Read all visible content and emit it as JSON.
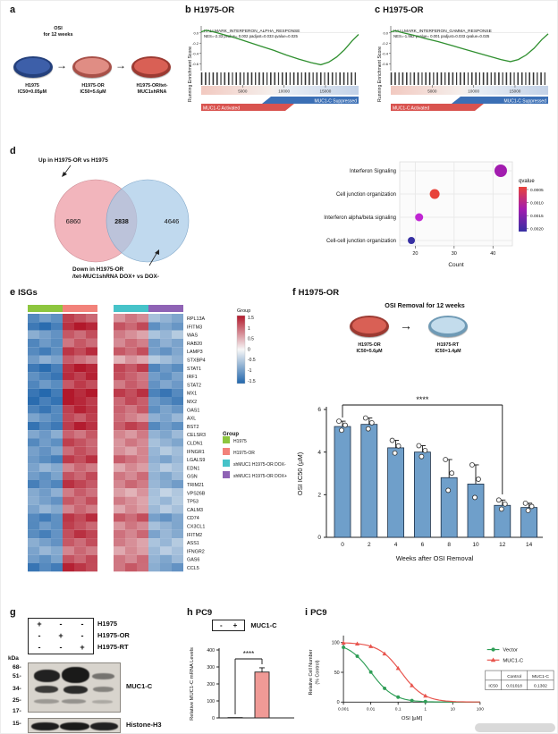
{
  "misc": {
    "arrow": "→"
  },
  "panel_a": {
    "label": "a",
    "osi_note": "OSI\nfor 12 weeks",
    "dishes": [
      {
        "name": "H1975",
        "ic50": "IC50=0.05µM",
        "fill": "#3d5fa9",
        "rim": "#24407c"
      },
      {
        "name": "H1975-OR",
        "ic50": "IC50=5.6µM",
        "fill": "#e08d84",
        "rim": "#a85048"
      },
      {
        "name": "H1975-OR/tet-MUC1shRNA",
        "ic50": "",
        "fill": "#d96055",
        "rim": "#9c3a32"
      }
    ]
  },
  "panel_b": {
    "label": "b",
    "title": "H1975-OR",
    "hallmark": "HALLMARK_INTERFERON_ALPHA_RESPONSE",
    "stats": "NES=-2.33  pvalue= 0.002  padjust=0.033 qvalue=0.025",
    "ylabel": "Running Enrichment Score",
    "activated": "MUC1-C Activated",
    "suppressed": "MUC1-C Suppressed"
  },
  "panel_c": {
    "label": "c",
    "title": "H1975-OR",
    "hallmark": "HALLMARK_INTERFERON_GAMMA_RESPONSE",
    "stats": "NES=-1.982  pvalue= 0.001  padjust=0.033 qvalue=0.025",
    "ylabel": "Running Enrichment Score",
    "activated": "MUC1-C Activated",
    "suppressed": "MUC1-C Suppressed"
  },
  "panel_d": {
    "label": "d",
    "venn": {
      "up_label": "Up in H1975-OR vs H1975",
      "left_count": "6860",
      "overlap_count": "2838",
      "right_count": "4646",
      "down_label_line1": "Down in H1975-OR",
      "down_label_line2": "/tet-MUC1shRNA DOX+ vs DOX-",
      "left_color": "#efa3ab",
      "right_color": "#a5c9e7"
    }
  },
  "panel_e": {
    "label": "e",
    "title": "ISGs"
  },
  "panel_f": {
    "label": "f",
    "title": "H1975-OR",
    "heading": "OSI Removal for 12 weeks",
    "dishes": [
      {
        "name": "H1975-OR",
        "ic50": "IC50=5.6µM",
        "fill": "#d96055",
        "rim": "#9c3a32"
      },
      {
        "name": "H1975-RT",
        "ic50": "IC50=1.4µM",
        "fill": "#c3dcec",
        "rim": "#6f9ab5"
      }
    ]
  },
  "panel_g": {
    "label": "g",
    "condition_rows": [
      {
        "cells": [
          "+",
          "-",
          "-"
        ],
        "name": "H1975"
      },
      {
        "cells": [
          "-",
          "+",
          "-"
        ],
        "name": "H1975-OR"
      },
      {
        "cells": [
          "-",
          "-",
          "+"
        ],
        "name": "H1975-RT"
      }
    ],
    "kda": "kDa",
    "markers": [
      "68-",
      "51-",
      "34-",
      "25-",
      "17-",
      "15-"
    ],
    "blot1_label": "MUC1-C",
    "blot2_label": "Histone-H3"
  },
  "panel_h": {
    "label": "h",
    "title": "PC9",
    "minus": "-",
    "plus": "+",
    "gene": "MUC1-C",
    "sig": "****"
  },
  "panel_i": {
    "label": "i",
    "title": "PC9"
  },
  "chart_data": [
    {
      "id": "gsea_alpha",
      "type": "line",
      "panel": "b",
      "yticks": [
        "0.0",
        "-0.2",
        "-0.4",
        "-0.6"
      ],
      "xticks": [
        5000,
        10000,
        15000
      ],
      "x_total": 19000,
      "color": "#2f8f2f",
      "curve": [
        [
          0,
          0.02
        ],
        [
          0.03,
          0.05
        ],
        [
          0.08,
          0.02
        ],
        [
          0.15,
          -0.04
        ],
        [
          0.22,
          -0.1
        ],
        [
          0.3,
          -0.18
        ],
        [
          0.38,
          -0.26
        ],
        [
          0.46,
          -0.34
        ],
        [
          0.54,
          -0.43
        ],
        [
          0.62,
          -0.51
        ],
        [
          0.7,
          -0.58
        ],
        [
          0.76,
          -0.62
        ],
        [
          0.81,
          -0.57
        ],
        [
          0.86,
          -0.47
        ],
        [
          0.91,
          -0.33
        ],
        [
          0.96,
          -0.15
        ],
        [
          1,
          -0.03
        ]
      ]
    },
    {
      "id": "gsea_gamma",
      "type": "line",
      "panel": "c",
      "yticks": [
        "0.0",
        "-0.2",
        "-0.4",
        "-0.6"
      ],
      "xticks": [
        5000,
        10000,
        15000
      ],
      "x_total": 19000,
      "color": "#2f8f2f",
      "curve": [
        [
          0,
          0.02
        ],
        [
          0.03,
          0.04
        ],
        [
          0.08,
          0.0
        ],
        [
          0.15,
          -0.05
        ],
        [
          0.22,
          -0.11
        ],
        [
          0.3,
          -0.17
        ],
        [
          0.38,
          -0.24
        ],
        [
          0.46,
          -0.31
        ],
        [
          0.54,
          -0.38
        ],
        [
          0.62,
          -0.45
        ],
        [
          0.7,
          -0.52
        ],
        [
          0.76,
          -0.56
        ],
        [
          0.81,
          -0.52
        ],
        [
          0.86,
          -0.43
        ],
        [
          0.91,
          -0.3
        ],
        [
          0.96,
          -0.13
        ],
        [
          1,
          -0.02
        ]
      ]
    },
    {
      "id": "dotplot",
      "type": "scatter",
      "xlabel": "Count",
      "categories": [
        "Interferon Signaling",
        "Cell junction organization",
        "Interferon alpha/beta signaling",
        "Cell-cell junction organization"
      ],
      "counts": [
        42,
        25,
        21,
        19
      ],
      "dot_colors": [
        "#a21caf",
        "#e8433a",
        "#c026d3",
        "#3730a3"
      ],
      "dot_radii": [
        7,
        5.5,
        4.5,
        4
      ],
      "xticks": [
        20,
        30,
        40
      ],
      "xlim": [
        16,
        45
      ],
      "legend_title": "qvalue",
      "legend_ticks": [
        "0.0005",
        "0.0010",
        "0.0015",
        "0.0020"
      ],
      "legend_colors": [
        "#e8433a",
        "#a21caf",
        "#3730a3"
      ]
    },
    {
      "id": "heatmap",
      "type": "heatmap",
      "legend_title": "Group",
      "scale_ticks": [
        "1.5",
        "1",
        "0.5",
        "0",
        "-0.5",
        "-1",
        "-1.5"
      ],
      "groups": [
        {
          "name": "H1975",
          "color": "#8dc63f"
        },
        {
          "name": "H1975-OR",
          "color": "#f2827a"
        },
        {
          "name": "shMUC1 H1975-OR DOX-",
          "color": "#46c3c9"
        },
        {
          "name": "shMUC1 H1975-OR DOX+",
          "color": "#8f63b5"
        }
      ],
      "cols_per_group": 3,
      "rows": [
        [
          "RPL13A",
          -1.0,
          1.1,
          0.8,
          -0.7
        ],
        [
          "IFITM3",
          -1.3,
          1.4,
          1.1,
          -1.0
        ],
        [
          "WAS",
          -0.9,
          1.0,
          0.7,
          -0.6
        ],
        [
          "RAB20",
          -1.1,
          1.0,
          0.8,
          -0.8
        ],
        [
          "LAMP3",
          -1.2,
          1.3,
          1.0,
          -0.9
        ],
        [
          "STXBP4",
          -0.8,
          0.9,
          0.6,
          -0.6
        ],
        [
          "STAT1",
          -1.3,
          1.4,
          1.2,
          -1.1
        ],
        [
          "IRF1",
          -1.2,
          1.3,
          1.0,
          -1.0
        ],
        [
          "STAT2",
          -1.1,
          1.2,
          0.9,
          -0.9
        ],
        [
          "MX1",
          -1.4,
          1.5,
          1.2,
          -1.2
        ],
        [
          "MX2",
          -1.3,
          1.4,
          1.1,
          -1.1
        ],
        [
          "OAS1",
          -1.2,
          1.3,
          1.0,
          -1.0
        ],
        [
          "AXL",
          -1.0,
          1.1,
          0.8,
          -0.8
        ],
        [
          "BST2",
          -1.3,
          1.4,
          1.1,
          -1.0
        ],
        [
          "CELSR3",
          -0.9,
          1.0,
          0.7,
          -0.7
        ],
        [
          "CLDN1",
          -1.0,
          1.1,
          0.8,
          -0.7
        ],
        [
          "IFNGR1",
          -0.9,
          1.0,
          0.7,
          -0.6
        ],
        [
          "LGALS9",
          -1.1,
          1.2,
          0.9,
          -0.8
        ],
        [
          "EDN1",
          -0.8,
          0.9,
          0.6,
          -0.5
        ],
        [
          "GSN",
          -1.0,
          1.1,
          0.8,
          -0.7
        ],
        [
          "TRIM21",
          -1.1,
          1.2,
          0.9,
          -0.8
        ],
        [
          "VPS26B",
          -0.8,
          0.9,
          0.6,
          -0.5
        ],
        [
          "TP53",
          -0.9,
          1.0,
          0.7,
          -0.6
        ],
        [
          "CALM3",
          -0.8,
          0.9,
          0.6,
          -0.5
        ],
        [
          "CD74",
          -1.2,
          1.3,
          1.0,
          -0.9
        ],
        [
          "CX3CL1",
          -1.0,
          1.1,
          0.8,
          -0.7
        ],
        [
          "IFITM2",
          -1.1,
          1.2,
          0.9,
          -0.8
        ],
        [
          "ASS1",
          -0.9,
          1.0,
          0.7,
          -0.6
        ],
        [
          "IFNGR2",
          -0.8,
          0.9,
          0.6,
          -0.5
        ],
        [
          "GAS6",
          -1.0,
          1.1,
          0.8,
          -0.7
        ],
        [
          "CCL5",
          -1.2,
          1.3,
          1.0,
          -0.9
        ]
      ]
    },
    {
      "id": "ic50_bars",
      "type": "bar",
      "ylabel": "OSI IC50 (µM)",
      "xlabel": "Weeks after OSI Removal",
      "categories": [
        "0",
        "2",
        "4",
        "6",
        "8",
        "10",
        "12",
        "14"
      ],
      "values": [
        5.2,
        5.3,
        4.2,
        4.0,
        2.8,
        2.5,
        1.5,
        1.4
      ],
      "errors": [
        0.25,
        0.3,
        0.35,
        0.3,
        0.85,
        0.9,
        0.25,
        0.2
      ],
      "yticks": [
        0,
        2,
        4,
        6
      ],
      "ylim": [
        0,
        6
      ],
      "bar_color": "#6f9fca",
      "sig": "****",
      "sig_span": [
        0,
        6
      ]
    },
    {
      "id": "mrna_bars",
      "type": "bar",
      "ylabel": "Relative MUC1-C mRNA Levels",
      "categories": [
        "-",
        "+"
      ],
      "values": [
        2,
        270
      ],
      "errors": [
        0,
        25
      ],
      "bar_colors": [
        "#ffffff",
        "#f09a96"
      ],
      "yticks": [
        0,
        100,
        200,
        300,
        400
      ],
      "ylim": [
        0,
        400
      ],
      "sig": "****"
    },
    {
      "id": "dose_response",
      "type": "line",
      "xlabel": "OSI [µM]",
      "ylabel_line1": "Relative Cell Number",
      "ylabel_line2": "(% Control)",
      "xticks": [
        "0.001",
        "0.01",
        "0.1",
        "1",
        "10",
        "100"
      ],
      "yticks": [
        0,
        50,
        100
      ],
      "series": [
        {
          "name": "Vector",
          "color": "#2f9e57",
          "ic50": 0.01018,
          "marker": "circle"
        },
        {
          "name": "MUC1-C",
          "color": "#e8554e",
          "ic50": 0.1302,
          "marker": "triangle"
        }
      ],
      "doses": [
        0.001,
        0.0032,
        0.01,
        0.032,
        0.1,
        0.32,
        1
      ],
      "table": {
        "col_headers": [
          "Control",
          "MUC1-C"
        ],
        "row_label": "IC50",
        "row_values": [
          "0.01018",
          "0.1302"
        ]
      }
    }
  ]
}
